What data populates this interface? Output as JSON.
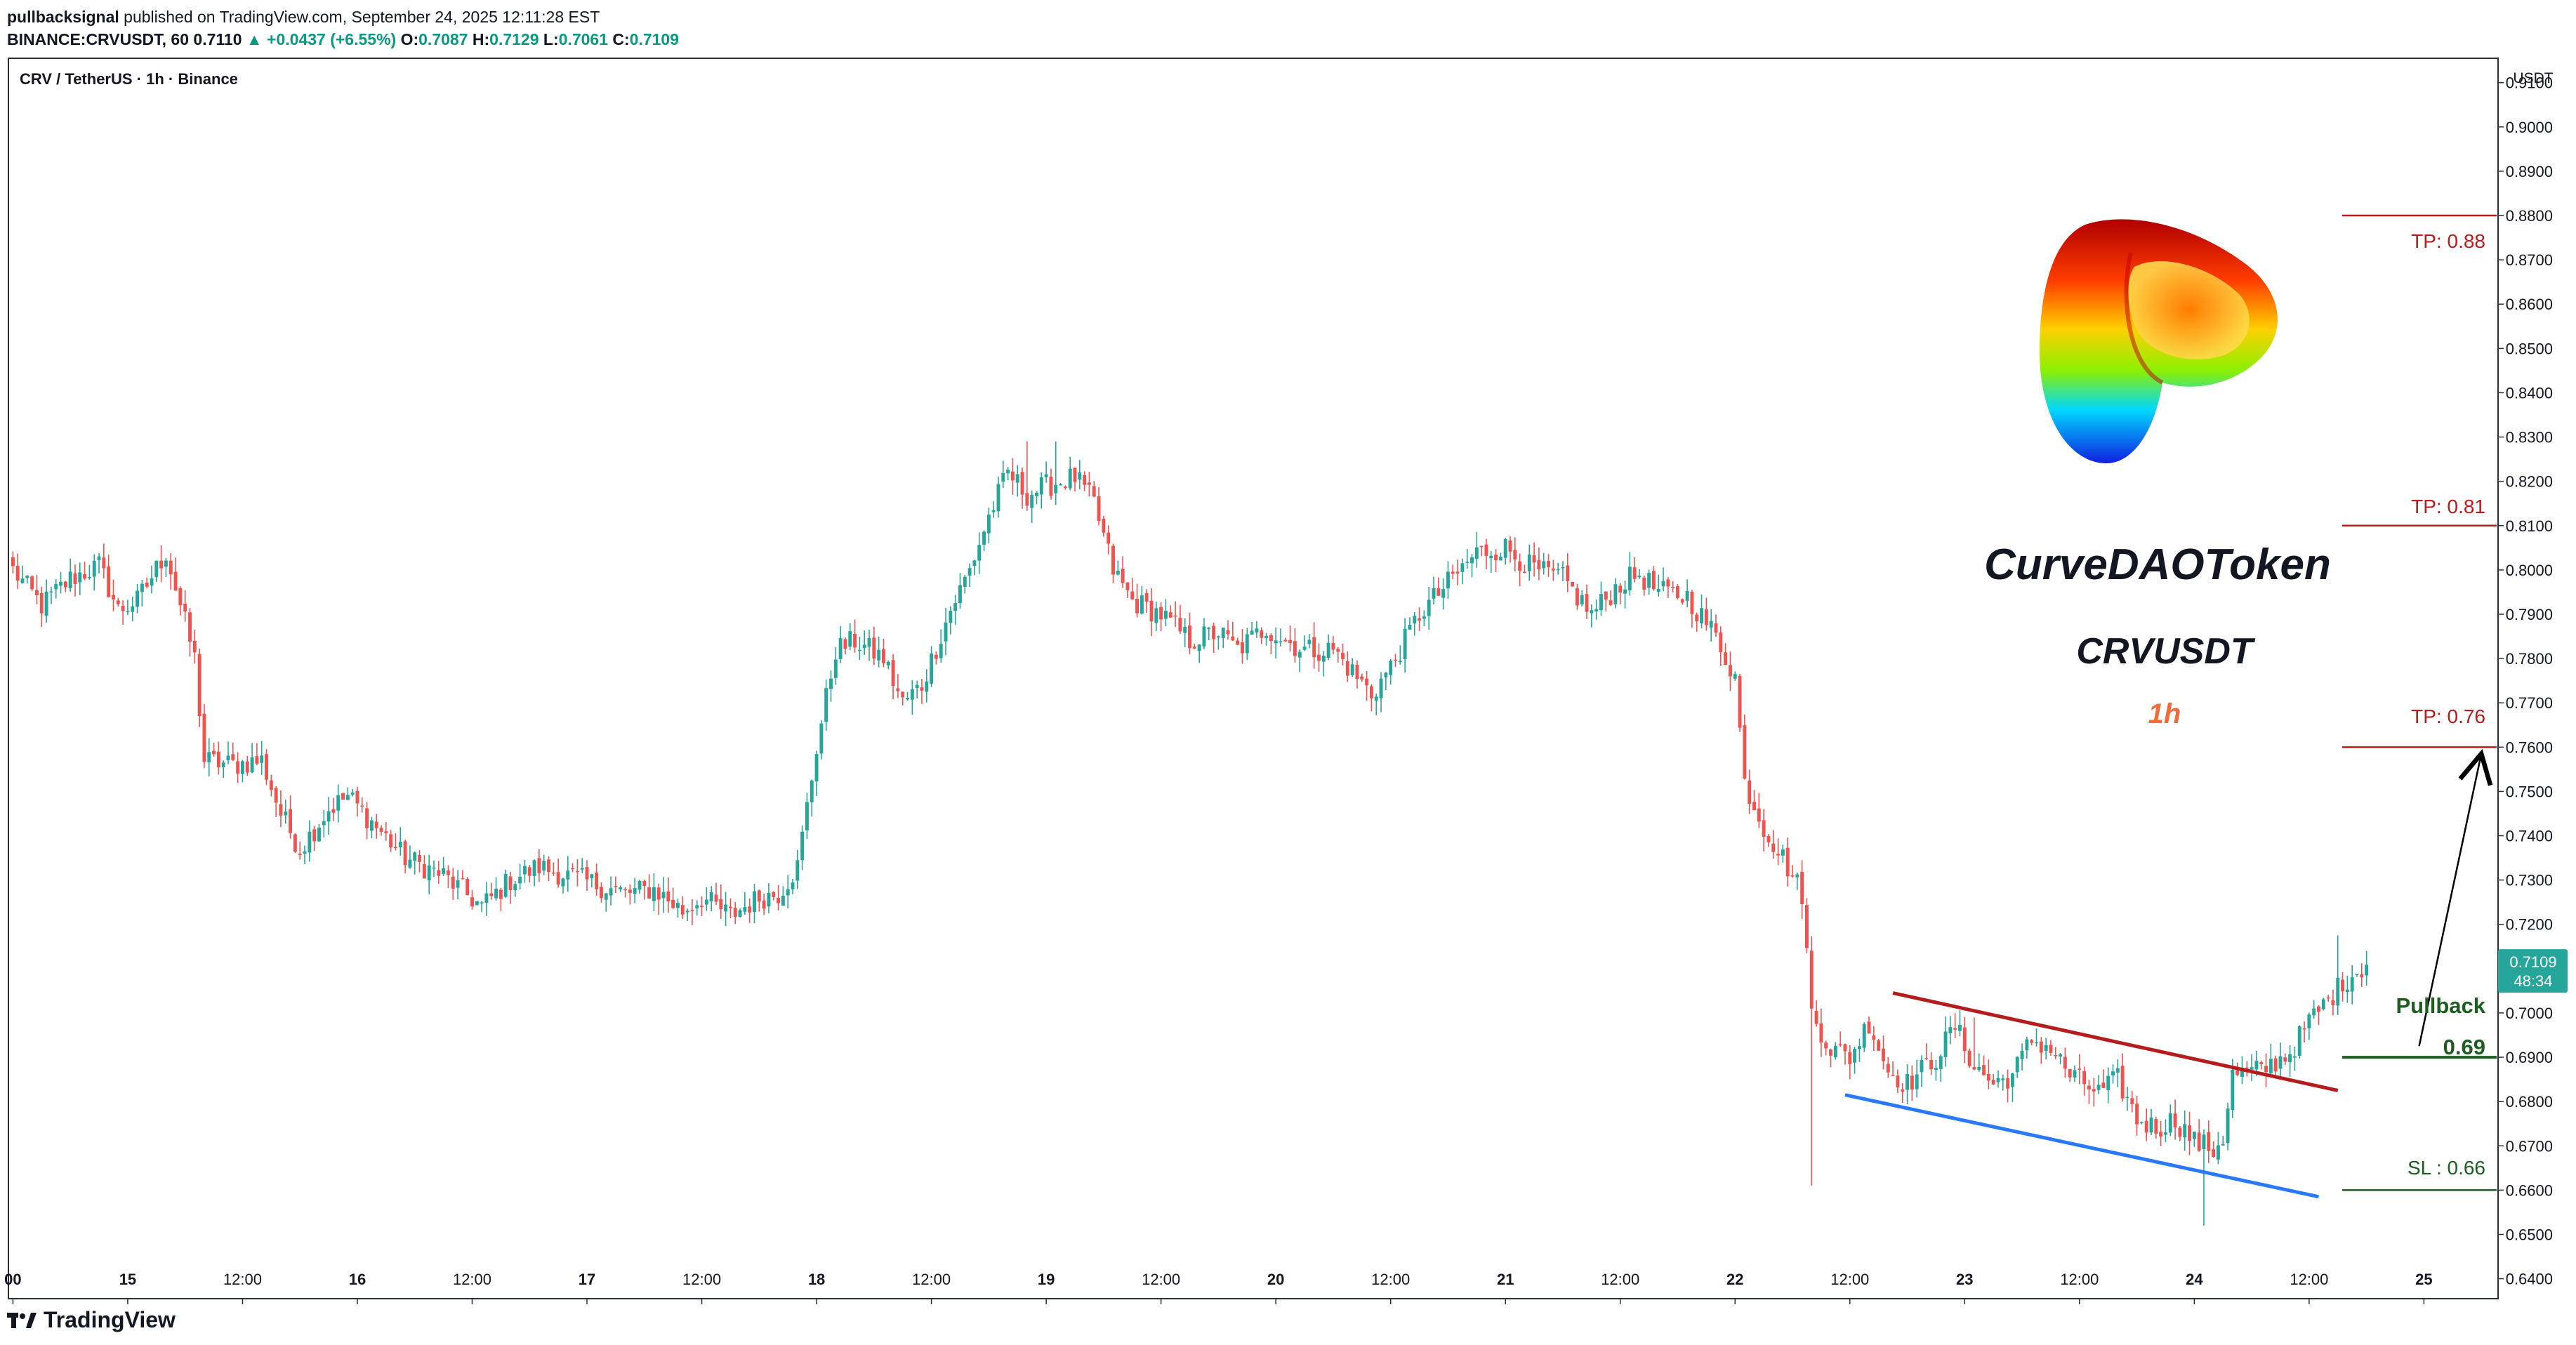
{
  "header": {
    "author": "pullbacksignal",
    "published_text": "published on TradingView.com, September 24, 2025 12:11:28 EST",
    "symbol": "BINANCE:CRVUSDT, 60",
    "last": "0.7110",
    "change": "▲ +0.0437 (+6.55%)",
    "o_label": "O:",
    "o": "0.7087",
    "h_label": "H:",
    "h": "0.7129",
    "l_label": "L:",
    "l": "0.7061",
    "c_label": "C:",
    "c": "0.7109"
  },
  "legend": "CRV / TetherUS · 1h · Binance",
  "currency": "USDT",
  "price_label": {
    "value": "0.7109",
    "countdown": "48:34"
  },
  "branding": "TradingView",
  "annotations": {
    "title": "CurveDAOToken",
    "pair": "CRVUSDT",
    "timeframe": "1h",
    "tp1": "TP: 0.88",
    "tp2": "TP: 0.81",
    "tp3": "TP: 0.76",
    "pullback_label": "Pullback",
    "pullback_value": "0.69",
    "sl": "SL : 0.66"
  },
  "colors": {
    "up": "#26a69a",
    "down": "#ef5350",
    "tp": "#b71c1c",
    "green_level": "#1b5e20",
    "channel_top": "#b71c1c",
    "channel_bottom": "#2979ff",
    "timeframe": "#ef6c3c",
    "price_label_bg": "#26a69a"
  },
  "chart_data": {
    "type": "candlestick",
    "title": "CRV / TetherUS · 1h · Binance",
    "ylabel": "USDT",
    "ylim": [
      0.6355,
      0.9155
    ],
    "y_ticks": [
      "0.9100",
      "0.9000",
      "0.8900",
      "0.8800",
      "0.8700",
      "0.8600",
      "0.8500",
      "0.8400",
      "0.8300",
      "0.8200",
      "0.8100",
      "0.8000",
      "0.7900",
      "0.7800",
      "0.7700",
      "0.7600",
      "0.7500",
      "0.7400",
      "0.7300",
      "0.7200",
      "0.7100",
      "0.7000",
      "0.6900",
      "0.6800",
      "0.6700",
      "0.6600",
      "0.6500",
      "0.6400"
    ],
    "x_ticks": [
      {
        "label": "00",
        "bar": 0
      },
      {
        "label": "15",
        "bar": 24
      },
      {
        "label": "12:00",
        "bar": 48
      },
      {
        "label": "16",
        "bar": 72
      },
      {
        "label": "12:00",
        "bar": 96
      },
      {
        "label": "17",
        "bar": 120
      },
      {
        "label": "12:00",
        "bar": 144
      },
      {
        "label": "18",
        "bar": 168
      },
      {
        "label": "12:00",
        "bar": 192
      },
      {
        "label": "19",
        "bar": 216
      },
      {
        "label": "12:00",
        "bar": 240
      },
      {
        "label": "20",
        "bar": 264
      },
      {
        "label": "12:00",
        "bar": 288
      },
      {
        "label": "21",
        "bar": 312
      },
      {
        "label": "12:00",
        "bar": 336
      },
      {
        "label": "22",
        "bar": 360
      },
      {
        "label": "12:00",
        "bar": 384
      },
      {
        "label": "23",
        "bar": 408
      },
      {
        "label": "12:00",
        "bar": 432
      },
      {
        "label": "24",
        "bar": 456
      },
      {
        "label": "12:00",
        "bar": 480
      },
      {
        "label": "25",
        "bar": 504
      }
    ],
    "bars_total": 520,
    "anchors": [
      [
        0,
        0.8
      ],
      [
        6,
        0.792
      ],
      [
        12,
        0.798
      ],
      [
        18,
        0.801
      ],
      [
        22,
        0.791
      ],
      [
        26,
        0.793
      ],
      [
        32,
        0.804
      ],
      [
        38,
        0.78
      ],
      [
        40,
        0.757
      ],
      [
        46,
        0.756
      ],
      [
        52,
        0.757
      ],
      [
        56,
        0.745
      ],
      [
        60,
        0.737
      ],
      [
        66,
        0.746
      ],
      [
        70,
        0.749
      ],
      [
        76,
        0.742
      ],
      [
        82,
        0.735
      ],
      [
        90,
        0.731
      ],
      [
        98,
        0.724
      ],
      [
        104,
        0.73
      ],
      [
        110,
        0.733
      ],
      [
        116,
        0.731
      ],
      [
        122,
        0.729
      ],
      [
        128,
        0.727
      ],
      [
        134,
        0.728
      ],
      [
        140,
        0.723
      ],
      [
        144,
        0.726
      ],
      [
        150,
        0.722
      ],
      [
        156,
        0.726
      ],
      [
        160,
        0.727
      ],
      [
        164,
        0.733
      ],
      [
        168,
        0.76
      ],
      [
        172,
        0.782
      ],
      [
        176,
        0.784
      ],
      [
        182,
        0.78
      ],
      [
        186,
        0.77
      ],
      [
        190,
        0.774
      ],
      [
        196,
        0.791
      ],
      [
        200,
        0.8
      ],
      [
        204,
        0.812
      ],
      [
        208,
        0.822
      ],
      [
        212,
        0.817
      ],
      [
        216,
        0.819
      ],
      [
        222,
        0.821
      ],
      [
        226,
        0.815
      ],
      [
        230,
        0.8
      ],
      [
        234,
        0.793
      ],
      [
        240,
        0.79
      ],
      [
        246,
        0.784
      ],
      [
        252,
        0.786
      ],
      [
        256,
        0.782
      ],
      [
        262,
        0.787
      ],
      [
        266,
        0.784
      ],
      [
        270,
        0.782
      ],
      [
        276,
        0.782
      ],
      [
        280,
        0.777
      ],
      [
        284,
        0.772
      ],
      [
        288,
        0.778
      ],
      [
        294,
        0.79
      ],
      [
        300,
        0.797
      ],
      [
        306,
        0.804
      ],
      [
        312,
        0.805
      ],
      [
        318,
        0.8
      ],
      [
        324,
        0.798
      ],
      [
        330,
        0.79
      ],
      [
        336,
        0.797
      ],
      [
        340,
        0.799
      ],
      [
        344,
        0.795
      ],
      [
        350,
        0.794
      ],
      [
        356,
        0.785
      ],
      [
        360,
        0.776
      ],
      [
        362,
        0.752
      ],
      [
        366,
        0.742
      ],
      [
        370,
        0.735
      ],
      [
        374,
        0.727
      ],
      [
        376,
        0.7
      ],
      [
        380,
        0.692
      ],
      [
        384,
        0.69
      ],
      [
        388,
        0.698
      ],
      [
        392,
        0.687
      ],
      [
        396,
        0.684
      ],
      [
        402,
        0.69
      ],
      [
        406,
        0.697
      ],
      [
        410,
        0.688
      ],
      [
        414,
        0.684
      ],
      [
        418,
        0.686
      ],
      [
        422,
        0.694
      ],
      [
        426,
        0.692
      ],
      [
        430,
        0.686
      ],
      [
        436,
        0.682
      ],
      [
        440,
        0.685
      ],
      [
        444,
        0.676
      ],
      [
        448,
        0.674
      ],
      [
        452,
        0.676
      ],
      [
        456,
        0.671
      ],
      [
        460,
        0.669
      ],
      [
        462,
        0.672
      ],
      [
        464,
        0.686
      ],
      [
        470,
        0.687
      ],
      [
        476,
        0.691
      ],
      [
        480,
        0.698
      ],
      [
        484,
        0.703
      ],
      [
        488,
        0.708
      ],
      [
        492,
        0.7109
      ]
    ],
    "spikes": [
      [
        376,
        0.661,
        null
      ],
      [
        406,
        null,
        0.7
      ],
      [
        410,
        null,
        0.699
      ],
      [
        458,
        0.652,
        null
      ],
      [
        486,
        null,
        0.7175
      ],
      [
        110,
        null,
        0.737
      ],
      [
        86,
        0.732,
        null
      ],
      [
        218,
        null,
        0.829
      ],
      [
        212,
        null,
        0.829
      ]
    ],
    "lines": {
      "channel_top": {
        "x1": 393,
        "y1": 0.7045,
        "x2": 486,
        "y2": 0.6825
      },
      "channel_bottom": {
        "x1": 383,
        "y1": 0.6815,
        "x2": 482,
        "y2": 0.6585
      },
      "arrow": {
        "x1": 503,
        "y1": 0.6925,
        "x2": 516,
        "y2": 0.7585
      }
    },
    "levels": [
      {
        "name": "tp1",
        "price": 0.88
      },
      {
        "name": "tp2",
        "price": 0.81
      },
      {
        "name": "tp3",
        "price": 0.76
      },
      {
        "name": "pullback",
        "price": 0.69
      },
      {
        "name": "sl",
        "price": 0.66
      }
    ],
    "last_price": 0.7109
  }
}
